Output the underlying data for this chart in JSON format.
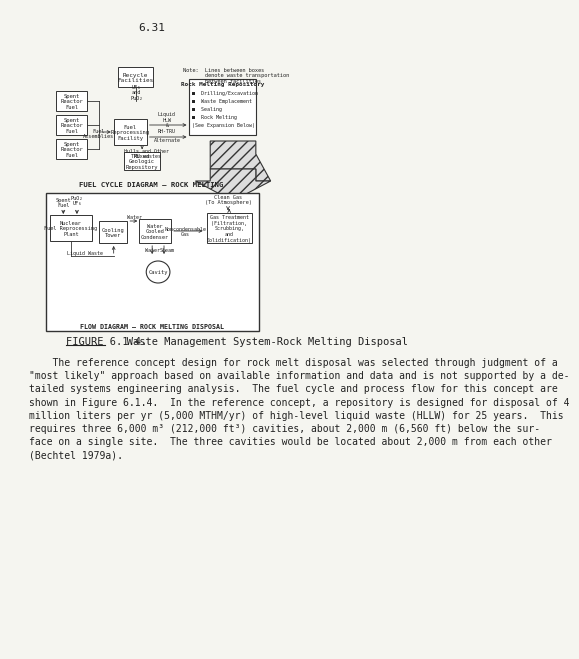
{
  "page_number": "6.31",
  "background_color": "#f5f5f0",
  "figure_caption_part1": "FIGURE 6.1.4.",
  "figure_caption_part2": "   Waste Management System-Rock Melting Disposal",
  "paragraph_text": [
    "    The reference concept design for rock melt disposal was selected through judgment of a",
    "\"most likely\" approach based on available information and data and is not supported by a de-",
    "tailed systems engineering analysis.  The fuel cycle and process flow for this concept are",
    "shown in Figure 6.1.4.  In the reference concept, a repository is designed for disposal of 4",
    "million liters per yr (5,000 MTHM/yr) of high-level liquid waste (HLLW) for 25 years.  This",
    "requires three 6,000 m³ (212,000 ft³) cavities, about 2,000 m (6,560 ft) below the sur-",
    "face on a single site.  The three cavities would be located about 2,000 m from each other",
    "(Bechtel 1979a)."
  ],
  "top_diagram_label": "FUEL CYCLE DIAGRAM – ROCK MELTING",
  "bottom_diagram_label": "FLOW DIAGRAM – ROCK MELTING DISPOSAL",
  "text_color": "#222222",
  "box_color": "#333333",
  "font_size_body": 7.0,
  "font_size_small": 5.5,
  "font_size_caption": 7.5,
  "font_size_page": 8.0
}
